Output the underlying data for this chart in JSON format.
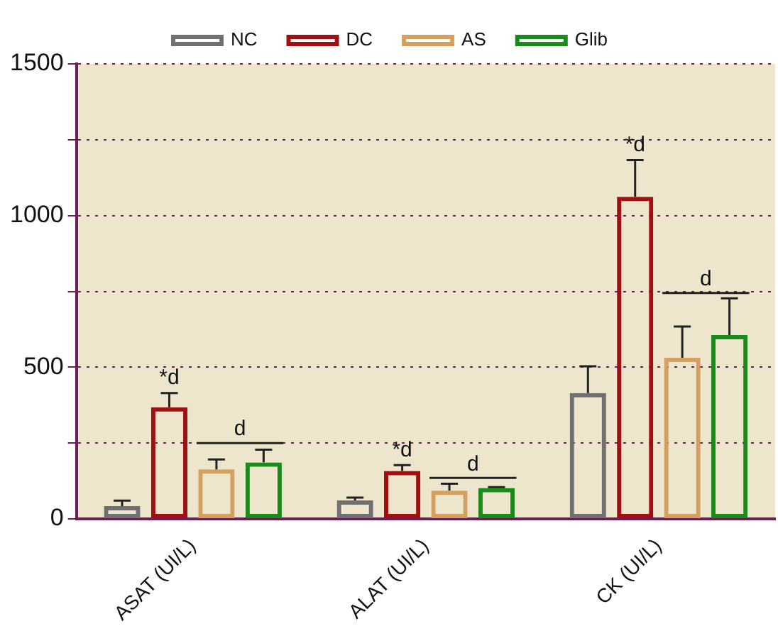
{
  "chart_data": {
    "type": "bar",
    "categories": [
      "ASAT (UI/L)",
      "ALAT (UI/L)",
      "CK (UI/L)"
    ],
    "series": [
      {
        "name": "NC",
        "color": "#707070",
        "values": [
          42,
          61,
          415
        ],
        "errors": [
          18,
          9,
          88
        ]
      },
      {
        "name": "DC",
        "color": "#a01010",
        "values": [
          368,
          158,
          1062
        ],
        "errors": [
          47,
          19,
          121
        ]
      },
      {
        "name": "AS",
        "color": "#d4a060",
        "values": [
          163,
          93,
          531
        ],
        "errors": [
          33,
          23,
          103
        ]
      },
      {
        "name": "Glib",
        "color": "#1a8a1a",
        "values": [
          186,
          102,
          606
        ],
        "errors": [
          42,
          3,
          121
        ]
      }
    ],
    "ylim": [
      0,
      1500
    ],
    "yticks": [
      0,
      {
        "value": 250,
        "label": null
      },
      500,
      {
        "value": 750,
        "label": null
      },
      1000,
      {
        "value": 1250,
        "label": null
      },
      1500
    ],
    "grid": "y",
    "legend": "top",
    "annotations": [
      {
        "text": "*d",
        "x": "ASAT (UI/L)",
        "y": 368
      },
      {
        "text": "d",
        "x": "ASAT (UI/L)",
        "y": 250
      },
      {
        "text": "*d",
        "x": "ALAT (UI/L)",
        "y": 158
      },
      {
        "text": "d",
        "x": "ALAT (UI/L)",
        "y": 135
      },
      {
        "text": "*d",
        "x": "CK (UI/L)",
        "y": 1062
      },
      {
        "text": "d",
        "x": "CK (UI/L)",
        "y": 745
      }
    ]
  }
}
